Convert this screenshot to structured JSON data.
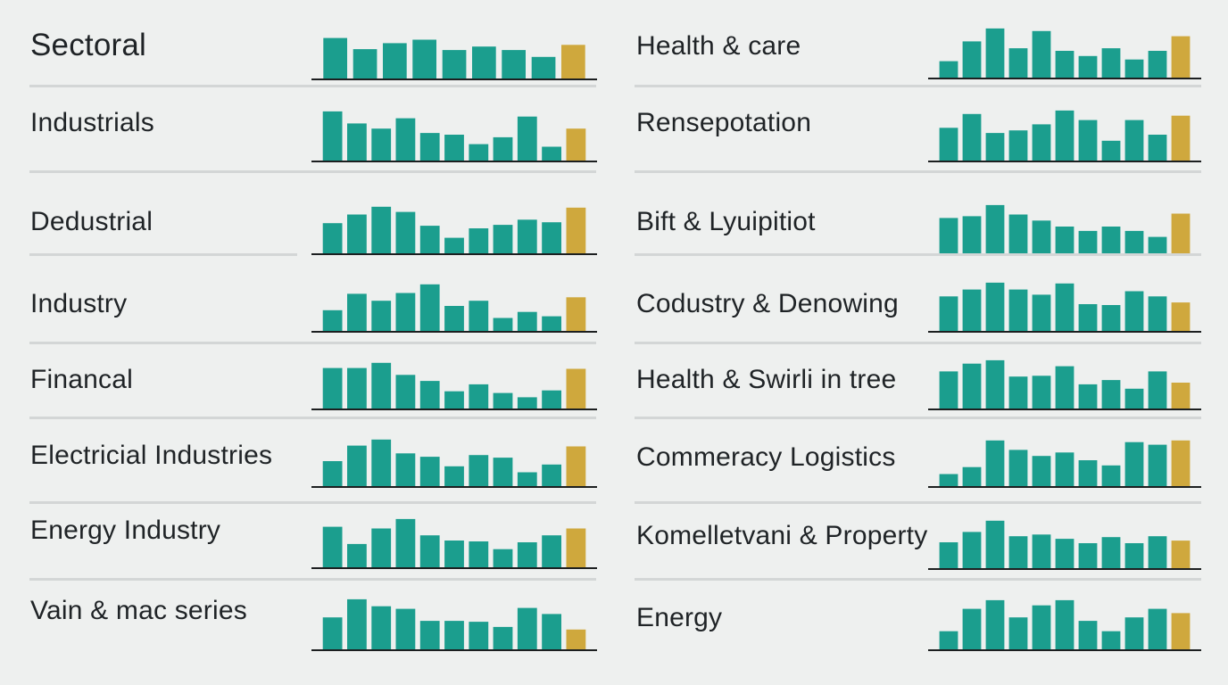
{
  "colors": {
    "bar": "#1b9e8e",
    "highlight": "#cfa83d",
    "baseline": "#1c1f20",
    "divider": "#d3d6d6",
    "background": "#eef0ef"
  },
  "chart_data": [
    {
      "type": "bar",
      "title": "Sectoral",
      "values": [
        47,
        34,
        41,
        45,
        33,
        37,
        33,
        25,
        39
      ]
    },
    {
      "type": "bar",
      "title": "Industrials",
      "values": [
        57,
        43,
        37,
        49,
        32,
        30,
        19,
        27,
        51,
        16,
        37
      ]
    },
    {
      "type": "bar",
      "title": "Dedustrial",
      "values": [
        35,
        45,
        54,
        48,
        32,
        18,
        29,
        33,
        39,
        36,
        53
      ]
    },
    {
      "type": "bar",
      "title": "Industry",
      "values": [
        24,
        43,
        35,
        44,
        54,
        29,
        35,
        15,
        22,
        17,
        39
      ]
    },
    {
      "type": "bar",
      "title": "Financal",
      "values": [
        47,
        47,
        53,
        39,
        32,
        20,
        28,
        18,
        13,
        21,
        46
      ]
    },
    {
      "type": "bar",
      "title": "Electricial Industries",
      "values": [
        29,
        47,
        54,
        38,
        34,
        23,
        36,
        33,
        16,
        25,
        46
      ]
    },
    {
      "type": "bar",
      "title": "Energy Industry",
      "values": [
        47,
        27,
        45,
        56,
        37,
        31,
        30,
        21,
        29,
        37,
        45
      ]
    },
    {
      "type": "bar",
      "title": "Vain & mac series",
      "values": [
        37,
        58,
        50,
        47,
        33,
        33,
        32,
        26,
        48,
        41,
        23
      ]
    },
    {
      "type": "bar",
      "title": "Health & care",
      "values": [
        19,
        42,
        57,
        34,
        54,
        31,
        25,
        34,
        21,
        31,
        48
      ]
    },
    {
      "type": "bar",
      "title": "Rensepotation",
      "values": [
        38,
        54,
        32,
        35,
        42,
        58,
        47,
        23,
        47,
        30,
        52
      ]
    },
    {
      "type": "bar",
      "title": "Bift & Lyuipitiot",
      "values": [
        41,
        43,
        56,
        45,
        38,
        31,
        26,
        31,
        26,
        19,
        46
      ]
    },
    {
      "type": "bar",
      "title": "Codustry & Denowing",
      "values": [
        40,
        48,
        56,
        48,
        42,
        55,
        31,
        30,
        46,
        40,
        33
      ]
    },
    {
      "type": "bar",
      "title": "Health & Swirli in tree",
      "values": [
        43,
        52,
        56,
        37,
        38,
        49,
        28,
        33,
        23,
        43,
        30
      ]
    },
    {
      "type": "bar",
      "title": "Commeracy Logistics",
      "values": [
        14,
        22,
        53,
        42,
        35,
        39,
        30,
        24,
        51,
        48,
        53
      ]
    },
    {
      "type": "bar",
      "title": "Komelletvani & Property",
      "values": [
        30,
        42,
        55,
        37,
        39,
        34,
        29,
        36,
        29,
        37,
        32
      ]
    },
    {
      "type": "bar",
      "title": "Energy",
      "values": [
        21,
        47,
        57,
        37,
        51,
        57,
        33,
        21,
        37,
        47,
        42
      ]
    }
  ]
}
